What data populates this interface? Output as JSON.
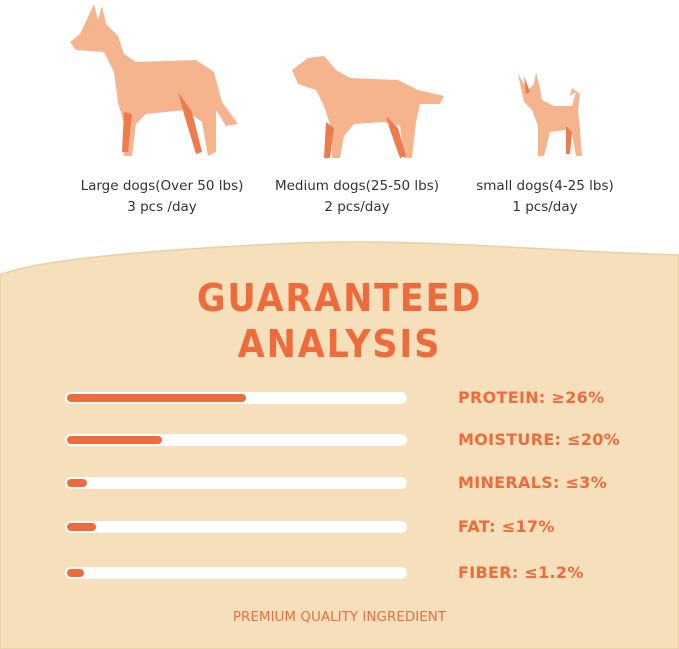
{
  "colors": {
    "accent": "#ee6b3c",
    "panel": "#f6dfbb",
    "dog_light": "#f5b48e",
    "dog_dark": "#ee7b4c"
  },
  "dogs": [
    {
      "icon": "large-dog-icon",
      "label": "Large dogs(Over 50 lbs)",
      "dose": "3 pcs /day"
    },
    {
      "icon": "medium-dog-icon",
      "label": "Medium dogs(25-50 lbs)",
      "dose": "2 pcs/day"
    },
    {
      "icon": "small-dog-icon",
      "label": "small dogs(4-25 lbs)",
      "dose": "1 pcs/day"
    }
  ],
  "title": {
    "line1": "GUARANTEED",
    "line2": "ANALYSIS"
  },
  "analysis": [
    {
      "label": "PROTEIN: ≥26%",
      "fill": 0.53
    },
    {
      "label": "MOISTURE: ≤20%",
      "fill": 0.28
    },
    {
      "label": "MINERALS: ≤3%",
      "fill": 0.06
    },
    {
      "label": "FAT: ≤17%",
      "fill": 0.085
    },
    {
      "label": "FIBER: ≤1.2%",
      "fill": 0.05
    }
  ],
  "footer": "PREMIUM QUALITY INGREDIENT"
}
